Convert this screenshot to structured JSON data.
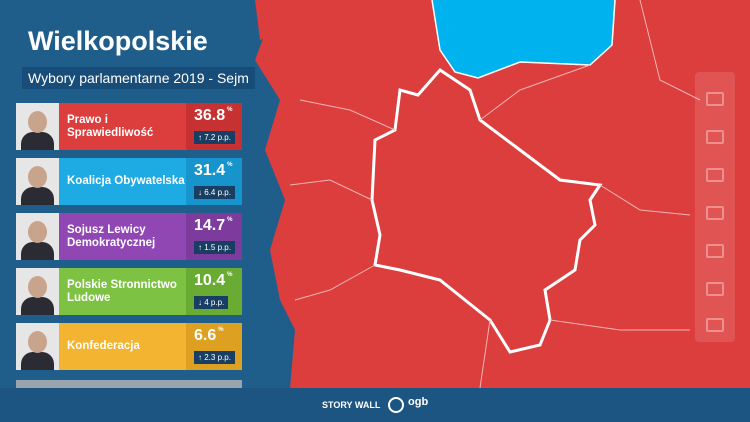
{
  "header": {
    "title": "Wielkopolskie",
    "subtitle": "Wybory parlamentarne 2019 - Sejm"
  },
  "parties": [
    {
      "name": "Prawo i Sprawiedliwość",
      "result": "36.8",
      "unit": "%",
      "change": "↑ 7.2 p.p.",
      "color": "#dc3d3d",
      "shade": "#c73131"
    },
    {
      "name": "Koalicja Obywatelska",
      "result": "31.4",
      "unit": "%",
      "change": "↓ 6.4 p.p.",
      "color": "#1eaae3",
      "shade": "#1694cb"
    },
    {
      "name": "Sojusz Lewicy Demokratycznej",
      "result": "14.7",
      "unit": "%",
      "change": "↑ 1.5 p.p.",
      "color": "#9046b3",
      "shade": "#7e3b9e"
    },
    {
      "name": "Polskie Stronnictwo Ludowe",
      "result": "10.4",
      "unit": "%",
      "change": "↓ 4 p.p.",
      "color": "#7dc242",
      "shade": "#69ab33"
    },
    {
      "name": "Konfederacja",
      "result": "6.6",
      "unit": "%",
      "change": "↑ 2.3 p.p.",
      "color": "#f2b431",
      "shade": "#dda021"
    }
  ],
  "footer": {
    "label": "STORY WALL",
    "brand": "ogb"
  }
}
